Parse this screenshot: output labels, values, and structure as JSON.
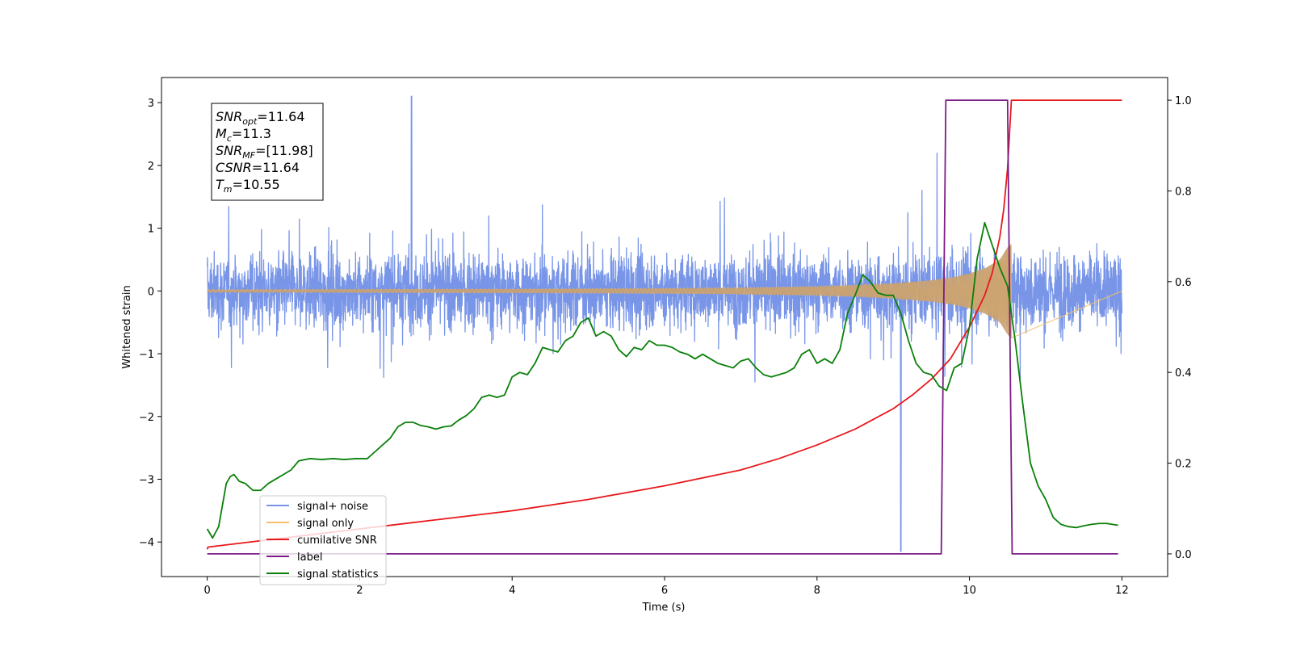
{
  "chart_data": {
    "type": "line",
    "xlabel": "Time (s)",
    "ylabel_left": "Whitened strain",
    "ylabel_right": "",
    "xlim": [
      -0.6,
      12.6
    ],
    "ylim_left": [
      -4.55,
      3.4
    ],
    "ylim_right": [
      -0.05,
      1.05
    ],
    "x_ticks": [
      0,
      2,
      4,
      6,
      8,
      10,
      12
    ],
    "y_ticks_left": [
      -4,
      -3,
      -2,
      -1,
      0,
      1,
      2,
      3
    ],
    "y_ticks_right": [
      0.0,
      0.2,
      0.4,
      0.6,
      0.8,
      1.0
    ],
    "grid": false,
    "legend_position": "lower-left",
    "info_box": {
      "lines": [
        {
          "base": "SNR",
          "sub": "opt",
          "value": "=11.64"
        },
        {
          "base": "M",
          "sub": "c",
          "value": "=11.3"
        },
        {
          "base": "SNR",
          "sub": "MF",
          "value": "=[11.98]"
        },
        {
          "base": "CSNR",
          "sub": "",
          "value": "=11.64"
        },
        {
          "base": "T",
          "sub": "m",
          "value": "=10.55"
        }
      ]
    },
    "series": [
      {
        "name": "signal+ noise",
        "color": "#7895e8",
        "axis": "left",
        "description_values": {
          "t_start": 0,
          "t_end": 12,
          "typical_band": [
            -1.1,
            1.1
          ],
          "max": 3.1,
          "min": -4.15,
          "min_at": 9.1
        }
      },
      {
        "name": "signal only",
        "color": "#f5c06a",
        "axis": "left",
        "envelope": {
          "t": [
            0,
            2,
            4,
            6,
            7,
            8,
            8.5,
            9,
            9.5,
            9.8,
            10,
            10.2,
            10.4,
            10.5,
            10.55
          ],
          "amp": [
            0.02,
            0.025,
            0.03,
            0.04,
            0.05,
            0.07,
            0.09,
            0.12,
            0.17,
            0.22,
            0.28,
            0.36,
            0.5,
            0.7,
            0.75
          ]
        }
      },
      {
        "name": "cumilative SNR",
        "color": "#e8191c",
        "axis": "right",
        "x": [
          0,
          0.01,
          1,
          2,
          3,
          4,
          5,
          6,
          7,
          7.5,
          8,
          8.5,
          9,
          9.25,
          9.5,
          9.75,
          10,
          10.2,
          10.3,
          10.4,
          10.45,
          10.5,
          10.53,
          10.55,
          12
        ],
        "values": [
          0.01,
          0.015,
          0.035,
          0.055,
          0.075,
          0.095,
          0.12,
          0.15,
          0.185,
          0.21,
          0.24,
          0.275,
          0.32,
          0.35,
          0.385,
          0.43,
          0.5,
          0.57,
          0.62,
          0.7,
          0.76,
          0.85,
          0.94,
          1.0,
          1.0
        ]
      },
      {
        "name": "label",
        "color": "#7b1c86",
        "axis": "right",
        "x": [
          0,
          9.63,
          9.69,
          10.5,
          10.56,
          11.95
        ],
        "values": [
          0,
          0,
          1,
          1,
          0,
          0
        ]
      },
      {
        "name": "signal statistics",
        "color": "#0a800a",
        "axis": "right",
        "x": [
          0,
          0.07,
          0.15,
          0.25,
          0.3,
          0.35,
          0.42,
          0.5,
          0.6,
          0.7,
          0.8,
          0.9,
          1.0,
          1.1,
          1.2,
          1.35,
          1.5,
          1.65,
          1.8,
          1.95,
          2.1,
          2.2,
          2.3,
          2.4,
          2.5,
          2.6,
          2.7,
          2.8,
          2.9,
          3.0,
          3.1,
          3.2,
          3.3,
          3.4,
          3.5,
          3.6,
          3.7,
          3.8,
          3.9,
          4.0,
          4.1,
          4.2,
          4.3,
          4.4,
          4.5,
          4.6,
          4.7,
          4.8,
          4.9,
          5.0,
          5.1,
          5.2,
          5.3,
          5.4,
          5.5,
          5.6,
          5.7,
          5.8,
          5.9,
          6.0,
          6.1,
          6.2,
          6.3,
          6.4,
          6.5,
          6.6,
          6.7,
          6.8,
          6.9,
          7.0,
          7.1,
          7.2,
          7.3,
          7.4,
          7.5,
          7.6,
          7.7,
          7.8,
          7.9,
          8.0,
          8.1,
          8.2,
          8.3,
          8.4,
          8.5,
          8.6,
          8.7,
          8.8,
          8.9,
          9.0,
          9.1,
          9.2,
          9.3,
          9.4,
          9.5,
          9.6,
          9.7,
          9.8,
          9.9,
          10.0,
          10.1,
          10.2,
          10.3,
          10.4,
          10.5,
          10.6,
          10.7,
          10.8,
          10.9,
          11.0,
          11.1,
          11.2,
          11.3,
          11.4,
          11.5,
          11.6,
          11.7,
          11.8,
          11.95
        ],
        "values": [
          0.055,
          0.035,
          0.06,
          0.155,
          0.17,
          0.175,
          0.16,
          0.155,
          0.14,
          0.14,
          0.155,
          0.165,
          0.175,
          0.185,
          0.205,
          0.21,
          0.208,
          0.21,
          0.208,
          0.21,
          0.21,
          0.225,
          0.24,
          0.255,
          0.28,
          0.29,
          0.29,
          0.283,
          0.28,
          0.275,
          0.28,
          0.282,
          0.295,
          0.305,
          0.32,
          0.345,
          0.35,
          0.345,
          0.35,
          0.39,
          0.4,
          0.395,
          0.42,
          0.455,
          0.45,
          0.445,
          0.47,
          0.48,
          0.51,
          0.52,
          0.48,
          0.49,
          0.48,
          0.45,
          0.435,
          0.455,
          0.45,
          0.47,
          0.46,
          0.46,
          0.455,
          0.445,
          0.44,
          0.43,
          0.44,
          0.43,
          0.42,
          0.415,
          0.41,
          0.425,
          0.43,
          0.41,
          0.395,
          0.39,
          0.395,
          0.4,
          0.41,
          0.44,
          0.45,
          0.42,
          0.43,
          0.42,
          0.45,
          0.53,
          0.57,
          0.615,
          0.6,
          0.575,
          0.57,
          0.57,
          0.53,
          0.47,
          0.42,
          0.4,
          0.395,
          0.37,
          0.36,
          0.41,
          0.42,
          0.5,
          0.65,
          0.73,
          0.68,
          0.63,
          0.59,
          0.47,
          0.33,
          0.2,
          0.15,
          0.12,
          0.08,
          0.065,
          0.06,
          0.058,
          0.062,
          0.065,
          0.067,
          0.067,
          0.063
        ]
      }
    ]
  }
}
